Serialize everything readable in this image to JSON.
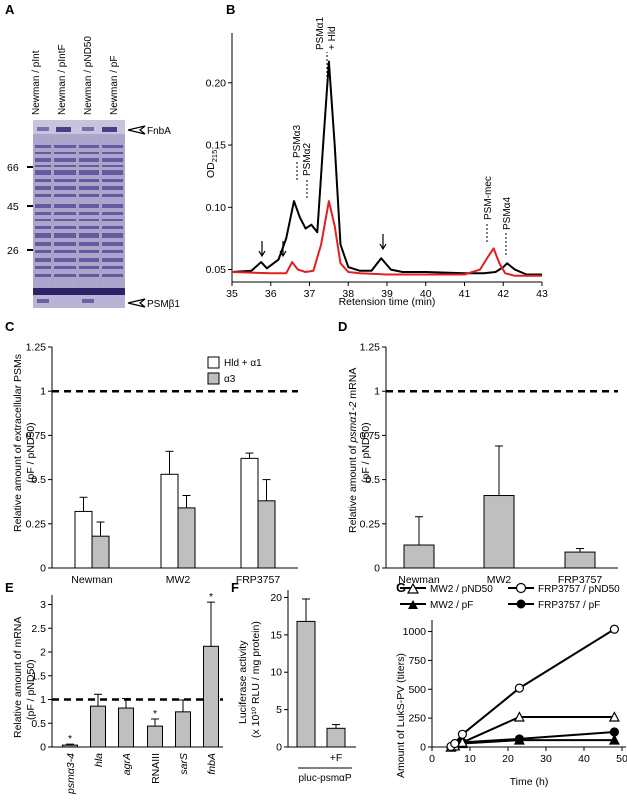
{
  "panels": {
    "A": {
      "letter": "A",
      "lanes": [
        "Newman / pInt",
        "Newman / pIntF",
        "Newman / pND50",
        "Newman / pF"
      ],
      "markers": [
        "66",
        "45",
        "26"
      ],
      "fnba_label": "FnbA",
      "psm_label": "PSMβ1"
    },
    "B": {
      "letter": "B",
      "ylabel_main": "OD",
      "ylabel_sub": "215",
      "xlabel": "Retension time (min)",
      "xticks": [
        "35",
        "36",
        "37",
        "38",
        "39",
        "40",
        "41",
        "42",
        "43"
      ],
      "yticks": [
        "0.05",
        "0.10",
        "0.15",
        "0.20"
      ],
      "peaks": [
        "PSMα3",
        "PSMα2",
        "PSMα1",
        "+ Hld",
        "PSM-mec",
        "PSMα4"
      ]
    },
    "C": {
      "letter": "C",
      "ylabel1": "Relative amount of extracellular PSMs",
      "ylabel2": "(pF / pND50)",
      "yticks": [
        "0",
        "0.25",
        "0.5",
        "0.75",
        "1",
        "1.25"
      ],
      "legend": [
        "Hld + α1",
        "α3"
      ]
    },
    "D": {
      "letter": "D",
      "ylabel1_pre": "Relative amount of ",
      "ylabel1_it": "psmα1-2",
      "ylabel1_post": " mRNA",
      "ylabel2": "(pF / pND50)",
      "yticks": [
        "0",
        "0.25",
        "0.5",
        "0.75",
        "1",
        "1.25"
      ]
    },
    "E": {
      "letter": "E",
      "ylabel1": "Relative amount of mRNA",
      "ylabel2": "(pF / pND50)",
      "yticks": [
        "0",
        "0.5",
        "1",
        "1.5",
        "2",
        "2.5",
        "3"
      ],
      "star": "*"
    },
    "F": {
      "letter": "F",
      "ylabel1": "Luciferase activity",
      "ylabel2": "(x 10¹⁰ RLU / mg protein)",
      "yticks": [
        "0",
        "5",
        "10",
        "15",
        "20"
      ],
      "cat_label": "+F",
      "group_label": "pluc-psmαP"
    },
    "G": {
      "letter": "G",
      "ylabel": "Amount of LukS-PV (titers)",
      "xlabel": "Time (h)",
      "xticks": [
        "0",
        "10",
        "20",
        "30",
        "40",
        "50"
      ],
      "yticks": [
        "0",
        "250",
        "500",
        "750",
        "1000"
      ],
      "legend": [
        "MW2 / pND50",
        "FRP3757 / pND50",
        "MW2 / pF",
        "FRP3757 / pF"
      ]
    }
  },
  "chart_data": [
    {
      "panel": "C",
      "type": "bar",
      "categories": [
        "Newman",
        "MW2",
        "FRP3757"
      ],
      "series": [
        {
          "name": "Hld + α1",
          "values": [
            0.32,
            0.53,
            0.62
          ],
          "errors": [
            0.08,
            0.13,
            0.03
          ]
        },
        {
          "name": "α3",
          "values": [
            0.18,
            0.34,
            0.38
          ],
          "errors": [
            0.08,
            0.07,
            0.12
          ]
        }
      ],
      "ylim": [
        0,
        1.25
      ],
      "reference_line": 1
    },
    {
      "panel": "D",
      "type": "bar",
      "categories": [
        "Newman",
        "MW2",
        "FRP3757"
      ],
      "values": [
        0.13,
        0.41,
        0.09
      ],
      "errors": [
        0.16,
        0.28,
        0.02
      ],
      "ylim": [
        0,
        1.25
      ],
      "reference_line": 1
    },
    {
      "panel": "E",
      "type": "bar",
      "categories": [
        "psmα3-4",
        "hla",
        "agrA",
        "RNAIII",
        "sarS",
        "fnbA"
      ],
      "italic": [
        true,
        true,
        true,
        false,
        true,
        true
      ],
      "values": [
        0.04,
        0.86,
        0.82,
        0.44,
        0.74,
        2.12
      ],
      "errors": [
        0.02,
        0.25,
        0.2,
        0.15,
        0.25,
        0.93
      ],
      "significant": [
        true,
        false,
        false,
        true,
        false,
        true
      ],
      "ylim": [
        0,
        3.2
      ],
      "reference_line": 1
    },
    {
      "panel": "F",
      "type": "bar",
      "categories": [
        "",
        "+F"
      ],
      "values": [
        16.8,
        2.5
      ],
      "errors": [
        3.0,
        0.5
      ],
      "ylim": [
        0,
        21
      ]
    },
    {
      "panel": "G",
      "type": "line",
      "series": [
        {
          "name": "MW2 / pND50",
          "x": [
            5,
            6,
            8,
            23,
            48
          ],
          "y": [
            0,
            10,
            40,
            260,
            260
          ]
        },
        {
          "name": "FRP3757 / pND50",
          "x": [
            5,
            6,
            8,
            23,
            48
          ],
          "y": [
            5,
            30,
            110,
            510,
            1020
          ]
        },
        {
          "name": "MW2 / pF",
          "x": [
            5,
            6,
            8,
            23,
            48
          ],
          "y": [
            0,
            10,
            30,
            60,
            60
          ]
        },
        {
          "name": "FRP3757 / pF",
          "x": [
            5,
            6,
            8,
            23,
            48
          ],
          "y": [
            0,
            10,
            40,
            70,
            130
          ]
        }
      ],
      "xlim": [
        0,
        50
      ],
      "ylim": [
        0,
        1100
      ]
    },
    {
      "panel": "B",
      "type": "line",
      "series": [
        {
          "name": "black trace",
          "color": "#000000",
          "x": [
            35,
            35.5,
            35.75,
            35.9,
            36.2,
            36.4,
            36.6,
            36.75,
            36.9,
            37.05,
            37.2,
            37.35,
            37.5,
            37.65,
            37.8,
            38.0,
            38.3,
            38.6,
            38.85,
            39.1,
            39.4,
            40.0,
            41.0,
            41.5,
            41.8,
            42.0,
            42.1,
            42.3,
            42.6,
            43.0
          ],
          "y": [
            0.048,
            0.049,
            0.056,
            0.051,
            0.058,
            0.075,
            0.105,
            0.092,
            0.083,
            0.086,
            0.08,
            0.15,
            0.217,
            0.15,
            0.07,
            0.052,
            0.049,
            0.049,
            0.059,
            0.05,
            0.048,
            0.048,
            0.047,
            0.047,
            0.048,
            0.052,
            0.055,
            0.05,
            0.046,
            0.046
          ]
        },
        {
          "name": "red trace",
          "color": "#e02020",
          "x": [
            35,
            36.0,
            36.4,
            36.55,
            36.7,
            36.9,
            37.1,
            37.3,
            37.5,
            37.65,
            37.8,
            38.0,
            38.3,
            39.0,
            40.0,
            41.0,
            41.4,
            41.6,
            41.75,
            41.9,
            42.05,
            42.3,
            43.0
          ],
          "y": [
            0.048,
            0.047,
            0.047,
            0.056,
            0.05,
            0.048,
            0.049,
            0.07,
            0.105,
            0.085,
            0.055,
            0.048,
            0.047,
            0.046,
            0.046,
            0.046,
            0.05,
            0.06,
            0.067,
            0.055,
            0.047,
            0.045,
            0.045
          ]
        }
      ],
      "xlim": [
        35,
        43
      ],
      "ylim": [
        0.04,
        0.24
      ]
    }
  ],
  "colors": {
    "gray_bar": "#bfbfbf",
    "red_trace": "#e02020",
    "gel_bg": "#a9a2c9",
    "gel_band": "#3d3075"
  }
}
